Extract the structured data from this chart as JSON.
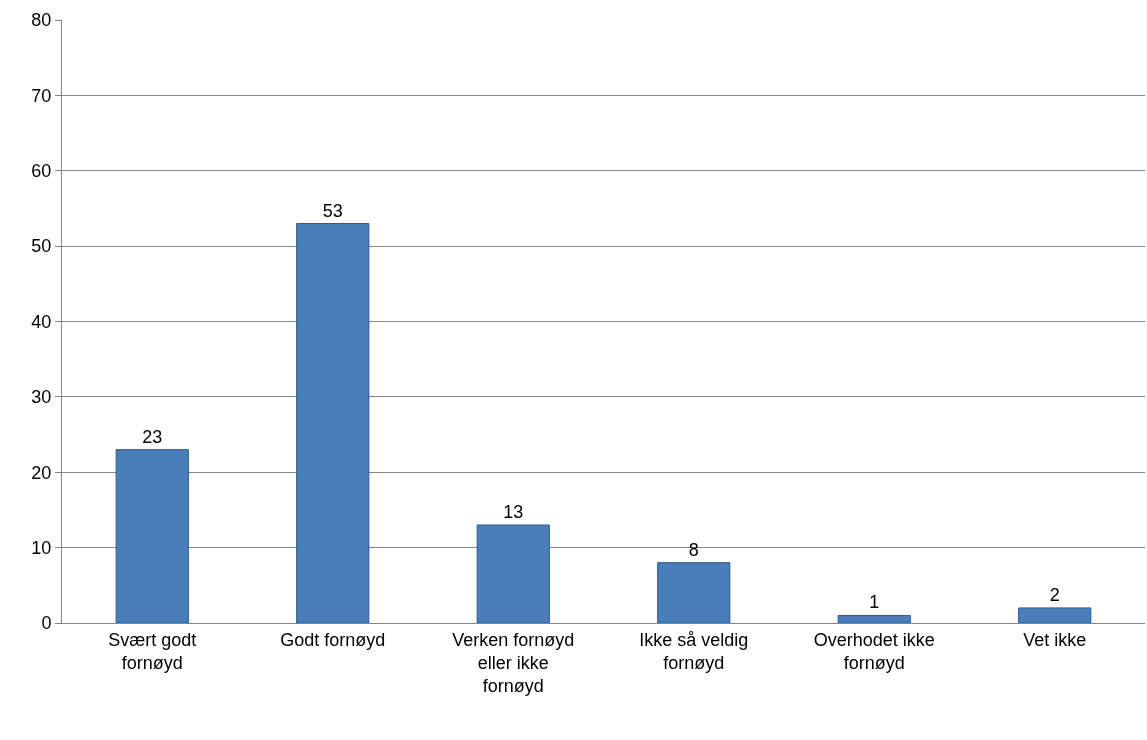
{
  "chart_data": {
    "type": "bar",
    "categories": [
      "Svært godt fornøyd",
      "Godt fornøyd",
      "Verken fornøyd eller ikke fornøyd",
      "Ikke så veldig fornøyd",
      "Overhodet ikke fornøyd",
      "Vet ikke"
    ],
    "values": [
      23,
      53,
      13,
      8,
      1,
      2
    ],
    "color": "#4a7ebb",
    "ylim": [
      0,
      80
    ],
    "yticks": [
      0,
      10,
      20,
      30,
      40,
      50,
      60,
      70,
      80
    ],
    "grid": "y",
    "data_labels": true,
    "legend": false
  }
}
